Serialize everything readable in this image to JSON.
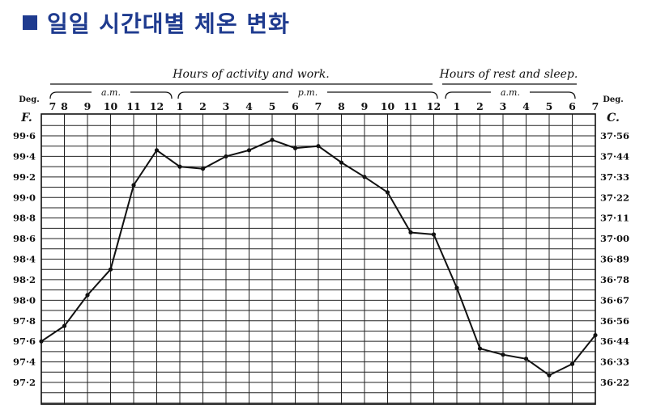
{
  "page": {
    "title": "일일 시간대별 체온 변화",
    "title_icon": "square-bullet-icon",
    "accent_color": "#1f3b8f"
  },
  "chart_data": {
    "type": "line",
    "header_left": "Hours of activity and work.",
    "header_right": "Hours of rest and sleep.",
    "period_labels": [
      "a.m.",
      "p.m.",
      "a.m."
    ],
    "left_unit": {
      "top": "Deg.",
      "bottom": "F."
    },
    "right_unit": {
      "top": "Deg.",
      "bottom": "C."
    },
    "x_tick_labels": [
      "7",
      "8",
      "9",
      "10",
      "11",
      "12",
      "1",
      "2",
      "3",
      "4",
      "5",
      "6",
      "7",
      "8",
      "9",
      "10",
      "11",
      "12",
      "1",
      "2",
      "3",
      "4",
      "5",
      "6",
      "7"
    ],
    "y_left_ticks": [
      "99·6",
      "99·4",
      "99·2",
      "99·0",
      "98·8",
      "98·6",
      "98·4",
      "98·2",
      "98·0",
      "97·8",
      "97·6",
      "97·4",
      "97·2"
    ],
    "y_left_values": [
      99.6,
      99.4,
      99.2,
      99.0,
      98.8,
      98.6,
      98.4,
      98.2,
      98.0,
      97.8,
      97.6,
      97.4,
      97.2
    ],
    "y_right_ticks": [
      "37·56",
      "37·44",
      "37·33",
      "37·22",
      "37·11",
      "37·00",
      "36·89",
      "36·78",
      "36·67",
      "36·56",
      "36·44",
      "36·33",
      "36·22"
    ],
    "ylim": [
      97.0,
      99.75
    ],
    "grid": true,
    "series": [
      {
        "x": [
          7,
          8,
          9,
          10,
          11,
          12,
          13,
          14,
          15,
          16,
          17,
          18,
          19,
          20,
          21,
          22,
          23,
          24,
          25,
          26,
          27,
          28,
          29,
          30,
          31
        ],
        "values": [
          97.6,
          97.75,
          98.05,
          98.3,
          99.12,
          99.46,
          99.3,
          99.28,
          99.4,
          99.46,
          99.56,
          99.48,
          99.5,
          99.34,
          99.2,
          99.05,
          98.66,
          98.64,
          98.12,
          97.53,
          97.47,
          97.43,
          97.27,
          97.38,
          97.66
        ]
      }
    ]
  }
}
